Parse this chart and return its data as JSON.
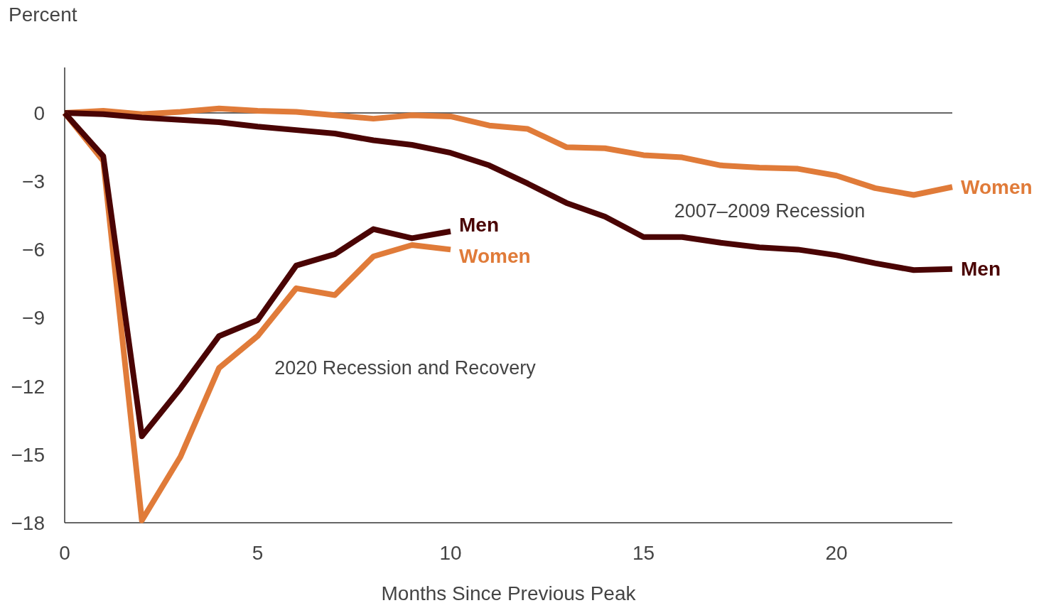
{
  "chart_data": {
    "type": "line",
    "ylabel": "Percent",
    "xlabel": "Months Since Previous Peak",
    "xlim": [
      0,
      23
    ],
    "ylim": [
      -18,
      2
    ],
    "xticks": [
      0,
      5,
      10,
      15,
      20
    ],
    "yticks": [
      0,
      -3,
      -6,
      -9,
      -12,
      -15,
      -18
    ],
    "grid": false,
    "line_style": "solid",
    "marker": "none",
    "ref_lines": [
      {
        "axis": "y",
        "value": 0,
        "color": "#333333"
      }
    ],
    "annotations": [
      "2007–2009 Recession",
      "2020 Recession and Recovery"
    ],
    "series": [
      {
        "name": "Women",
        "color": "#e07b39",
        "x": [
          0,
          1,
          2,
          3,
          4,
          5,
          6,
          7,
          8,
          9,
          10,
          11,
          12,
          13,
          14,
          15,
          16,
          17,
          18,
          19,
          20,
          21,
          22,
          23
        ],
        "values": [
          0,
          0.1,
          -0.05,
          0.05,
          0.2,
          0.1,
          0.05,
          -0.1,
          -0.25,
          -0.1,
          -0.15,
          -0.55,
          -0.7,
          -1.5,
          -1.55,
          -1.85,
          -1.95,
          -2.3,
          -2.4,
          -2.45,
          -2.75,
          -3.3,
          -3.6,
          -3.25
        ]
      },
      {
        "name": "Men",
        "color": "#4a0404",
        "x": [
          0,
          1,
          2,
          3,
          4,
          5,
          6,
          7,
          8,
          9,
          10,
          11,
          12,
          13,
          14,
          15,
          16,
          17,
          18,
          19,
          20,
          21,
          22,
          23
        ],
        "values": [
          0,
          -0.05,
          -0.2,
          -0.3,
          -0.4,
          -0.6,
          -0.75,
          -0.9,
          -1.2,
          -1.4,
          -1.75,
          -2.3,
          -3.1,
          -3.95,
          -4.55,
          -5.45,
          -5.45,
          -5.7,
          -5.9,
          -6.0,
          -6.25,
          -6.6,
          -6.9,
          -6.85
        ]
      },
      {
        "name": "Women",
        "color": "#e07b39",
        "x": [
          0,
          1,
          2,
          3,
          4,
          5,
          6,
          7,
          8,
          9,
          10
        ],
        "values": [
          0,
          -2.1,
          -17.9,
          -15.1,
          -11.2,
          -9.8,
          -7.7,
          -8.0,
          -6.3,
          -5.8,
          -6.0
        ]
      },
      {
        "name": "Men",
        "color": "#4a0404",
        "x": [
          0,
          1,
          2,
          3,
          4,
          5,
          6,
          7,
          8,
          9,
          10
        ],
        "values": [
          0,
          -1.9,
          -14.2,
          -12.1,
          -9.8,
          -9.1,
          -6.7,
          -6.2,
          -5.1,
          -5.5,
          -5.2
        ]
      }
    ]
  }
}
